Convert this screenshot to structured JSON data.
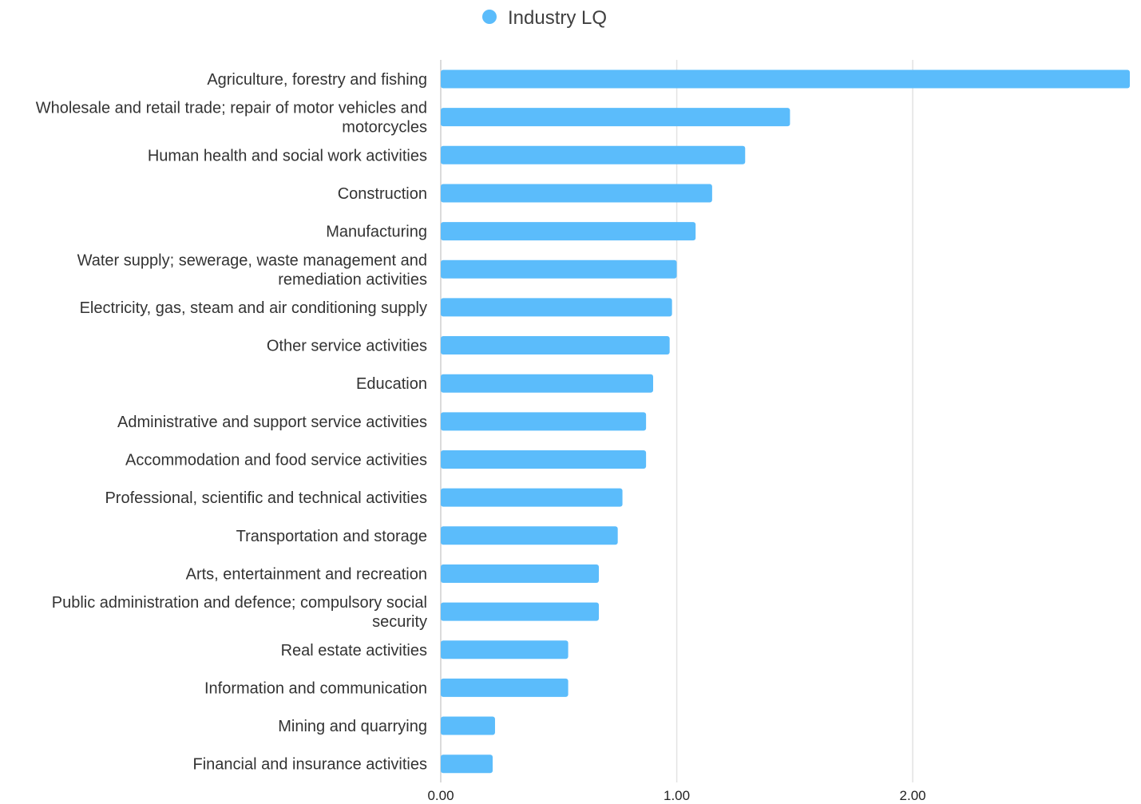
{
  "chart_data": {
    "type": "bar",
    "orientation": "horizontal",
    "legend": {
      "position": "top-center",
      "entries": [
        {
          "name": "Industry LQ",
          "color": "#5bbcfb"
        }
      ]
    },
    "categories": [
      "Agriculture, forestry and fishing",
      "Wholesale and retail trade; repair of motor vehicles and motorcycles",
      "Human health and social work activities",
      "Construction",
      "Manufacturing",
      "Water supply; sewerage, waste management and remediation activities",
      "Electricity, gas, steam and air conditioning supply",
      "Other service activities",
      "Education",
      "Administrative and support service activities",
      "Accommodation and food service activities",
      "Professional, scientific and technical activities",
      "Transportation and storage",
      "Arts, entertainment and recreation",
      "Public administration and defence; compulsory social security",
      "Real estate activities",
      "Information and communication",
      "Mining and quarrying",
      "Financial and insurance activities"
    ],
    "category_lines": [
      [
        "Agriculture, forestry and fishing"
      ],
      [
        "Wholesale and retail trade; repair of motor vehicles and",
        "motorcycles"
      ],
      [
        "Human health and social work activities"
      ],
      [
        "Construction"
      ],
      [
        "Manufacturing"
      ],
      [
        "Water supply; sewerage, waste management and",
        "remediation activities"
      ],
      [
        "Electricity, gas, steam and air conditioning supply"
      ],
      [
        "Other service activities"
      ],
      [
        "Education"
      ],
      [
        "Administrative and support service activities"
      ],
      [
        "Accommodation and food service activities"
      ],
      [
        "Professional, scientific and technical activities"
      ],
      [
        "Transportation and storage"
      ],
      [
        "Arts, entertainment and recreation"
      ],
      [
        "Public administration and defence; compulsory social",
        "security"
      ],
      [
        "Real estate activities"
      ],
      [
        "Information and communication"
      ],
      [
        "Mining and quarrying"
      ],
      [
        "Financial and insurance activities"
      ]
    ],
    "series": [
      {
        "name": "Industry LQ",
        "color": "#5bbcfb",
        "values": [
          2.92,
          1.48,
          1.29,
          1.15,
          1.08,
          1.0,
          0.98,
          0.97,
          0.9,
          0.87,
          0.87,
          0.77,
          0.75,
          0.67,
          0.67,
          0.54,
          0.54,
          0.23,
          0.22
        ]
      }
    ],
    "xlim": [
      0,
      2.92
    ],
    "xticks": [
      0,
      1,
      2
    ],
    "xtick_labels": [
      "0.00",
      "1.00",
      "2.00"
    ],
    "grid": true,
    "title": "",
    "xlabel": "",
    "ylabel": ""
  }
}
